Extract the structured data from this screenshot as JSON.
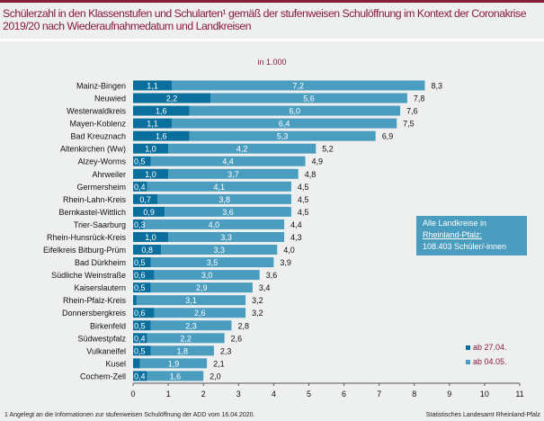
{
  "title": "Schülerzahl in den Klassenstufen und Schularten¹ gemäß der stufenweisen Schulöffnung im Kontext der Coronakrise 2019/20 nach Wiederaufnahmedatum und Landkreisen",
  "unit": "in 1.000",
  "info": {
    "line1": "Alle Landkreise in",
    "line2": "Rheinland-Pfalz:",
    "line3": "108.403 Schüler/-innen"
  },
  "footnote": "1 Angelegt an die Informationen zur stufenweisen Schulöffnung der ADD vom 16.04.2020.",
  "source": "Statistisches Landesamt Rheinland-Pfalz",
  "colors": {
    "dark": "#0b6f9e",
    "light": "#4b9dc0",
    "accent": "#8a1c3c"
  },
  "chart_data": {
    "type": "bar",
    "orientation": "horizontal-stacked",
    "title": "Schülerzahl nach Wiederaufnahmedatum und Landkreisen",
    "xlabel": "",
    "ylabel": "",
    "xlim": [
      0,
      11
    ],
    "xticks": [
      "0",
      "1",
      "2",
      "3",
      "4",
      "5",
      "6",
      "7",
      "8",
      "9",
      "10",
      "11"
    ],
    "grid": false,
    "legend_position": "bottom-right",
    "categories": [
      "Mainz-Bingen",
      "Neuwied",
      "Westerwaldkreis",
      "Mayen-Koblenz",
      "Bad Kreuznach",
      "Altenkirchen (Ww)",
      "Alzey-Worms",
      "Ahrweiler",
      "Germersheim",
      "Rhein-Lahn-Kreis",
      "Bernkastel-Wittlich",
      "Trier-Saarburg",
      "Rhein-Hunsrück-Kreis",
      "Eifelkreis Bitburg-Prüm",
      "Bad Dürkheim",
      "Südliche Weinstraße",
      "Kaiserslautern",
      "Rhein-Pfalz-Kreis",
      "Donnersbergkreis",
      "Birkenfeld",
      "Südwestpfalz",
      "Vulkaneifel",
      "Kusel",
      "Cochem-Zell"
    ],
    "series": [
      {
        "name": "ab 27.04.",
        "values": [
          1.1,
          2.2,
          1.6,
          1.1,
          1.6,
          1.0,
          0.5,
          1.0,
          0.4,
          0.7,
          0.9,
          0.3,
          1.0,
          0.8,
          0.5,
          0.6,
          0.5,
          0.1,
          0.6,
          0.5,
          0.4,
          0.5,
          0.2,
          0.4
        ],
        "labels": [
          "1,1",
          "2,2",
          "1,6",
          "1,1",
          "1,6",
          "1,0",
          "0,5",
          "1,0",
          "0,4",
          "0,7",
          "0,9",
          "0,3",
          "1,0",
          "0,8",
          "0,5",
          "0,6",
          "0,5",
          "",
          "0,6",
          "0,5",
          "0,4",
          "0,5",
          "",
          "0,4"
        ]
      },
      {
        "name": "ab 04.05.",
        "values": [
          7.2,
          5.6,
          6.0,
          6.4,
          5.3,
          4.2,
          4.4,
          3.7,
          4.1,
          3.8,
          3.6,
          4.0,
          3.3,
          3.3,
          3.5,
          3.0,
          2.9,
          3.1,
          2.6,
          2.3,
          2.2,
          1.8,
          1.9,
          1.6
        ],
        "labels": [
          "7,2",
          "5,6",
          "6,0",
          "6,4",
          "5,3",
          "4,2",
          "4,4",
          "3,7",
          "4,1",
          "3,8",
          "3,6",
          "4,0",
          "3,3",
          "3,3",
          "3,5",
          "3,0",
          "2,9",
          "3,1",
          "2,6",
          "2,3",
          "2,2",
          "1,8",
          "1,9",
          "1,6"
        ]
      }
    ],
    "totals": [
      "8,3",
      "7,8",
      "7,6",
      "7,5",
      "6,9",
      "5,2",
      "4,9",
      "4,8",
      "4,5",
      "4,5",
      "4,5",
      "4,4",
      "4,3",
      "4,0",
      "3,9",
      "3,6",
      "3,4",
      "3,2",
      "3,2",
      "2,8",
      "2,6",
      "2,3",
      "2,1",
      "2,0"
    ]
  }
}
